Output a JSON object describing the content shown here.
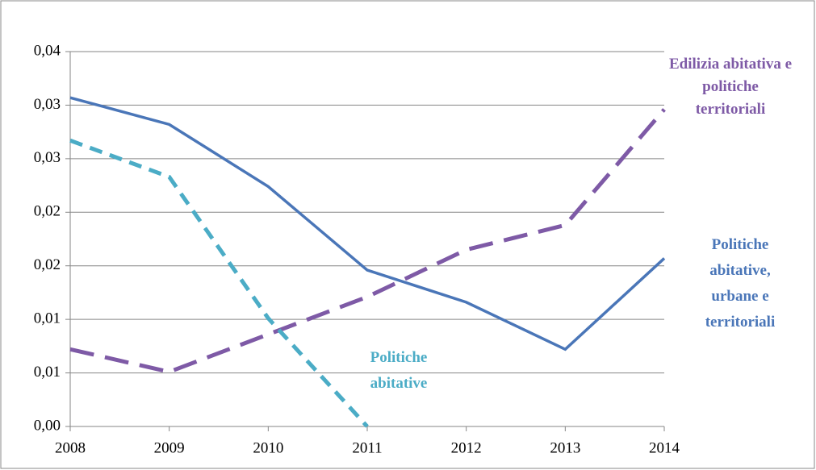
{
  "chart_data": {
    "type": "line",
    "categories": [
      "2008",
      "2009",
      "2010",
      "2011",
      "2012",
      "2013",
      "2014"
    ],
    "series": [
      {
        "name": "Politiche abitative, urbane e territoriali",
        "color": "#4a76b8",
        "dash": false,
        "values": [
          0.0307,
          0.0282,
          0.0224,
          0.0146,
          0.0116,
          0.0072,
          0.0157
        ]
      },
      {
        "name": "Edilizia abitativa e politiche territoriali",
        "color": "#7e5aa6",
        "dash": true,
        "values": [
          0.0072,
          0.0051,
          0.0086,
          0.0121,
          0.0165,
          0.0188,
          0.0296
        ]
      },
      {
        "name": "Politiche abitative",
        "color": "#4bacc6",
        "dash": true,
        "values": [
          0.0267,
          0.0233,
          0.0101,
          0.0,
          null,
          null,
          null
        ]
      }
    ],
    "ylim": [
      0,
      0.035
    ],
    "yticks": [
      {
        "value": 0,
        "label": "0,00"
      },
      {
        "value": 0.005,
        "label": "0,01"
      },
      {
        "value": 0.01,
        "label": "0,01"
      },
      {
        "value": 0.015,
        "label": "0,02"
      },
      {
        "value": 0.02,
        "label": "0,02"
      },
      {
        "value": 0.025,
        "label": "0,03"
      },
      {
        "value": 0.03,
        "label": "0,03"
      },
      {
        "value": 0.035,
        "label": "0,04"
      }
    ],
    "grid": true
  }
}
